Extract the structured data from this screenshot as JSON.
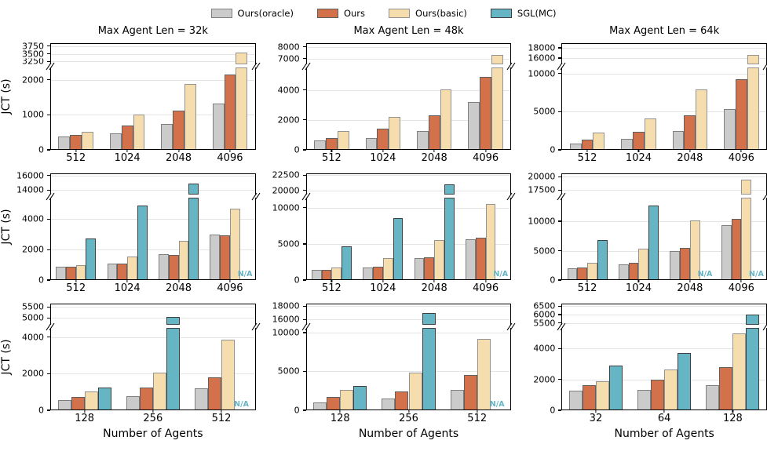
{
  "ylabel": "JCT (s)",
  "xlabel": "Number of Agents",
  "na_label": "N/A",
  "legend": {
    "items": [
      {
        "label": "Ours(oracle)",
        "color": "#cbcbcb",
        "edge": "#7f7f7f"
      },
      {
        "label": "Ours",
        "color": "#d2714a",
        "edge": "#5f5f5f"
      },
      {
        "label": "Ours(basic)",
        "color": "#f6ddad",
        "edge": "#939393"
      },
      {
        "label": "SGL(MC)",
        "color": "#66b5c5",
        "edge": "#3f3f3f"
      }
    ]
  },
  "chart_data": [
    {
      "type": "bar",
      "title": "Max Agent Len = 32k",
      "categories": [
        "512",
        "1024",
        "2048",
        "4096"
      ],
      "series": [
        {
          "name": "Ours(oracle)",
          "values": [
            380,
            470,
            740,
            1310
          ]
        },
        {
          "name": "Ours",
          "values": [
            420,
            690,
            1120,
            2150
          ]
        },
        {
          "name": "Ours(basic)",
          "values": [
            510,
            1000,
            1890,
            3530
          ]
        }
      ],
      "broken_axis": {
        "lower": {
          "ticks": [
            0,
            1000,
            2000
          ],
          "max": 2350
        },
        "upper": {
          "ticks": [
            3250,
            3500,
            3750
          ],
          "min": 3150,
          "max": 3850
        }
      }
    },
    {
      "type": "bar",
      "title": "Max Agent Len = 48k",
      "categories": [
        "512",
        "1024",
        "2048",
        "4096"
      ],
      "series": [
        {
          "name": "Ours(oracle)",
          "values": [
            650,
            800,
            1280,
            3180
          ]
        },
        {
          "name": "Ours",
          "values": [
            800,
            1400,
            2280,
            4850
          ]
        },
        {
          "name": "Ours(basic)",
          "values": [
            1250,
            2200,
            4050,
            7300
          ]
        }
      ],
      "broken_axis": {
        "lower": {
          "ticks": [
            0,
            2000,
            4000
          ],
          "max": 5500
        },
        "upper": {
          "ticks": [
            7000,
            8000
          ],
          "min": 6500,
          "max": 8300
        }
      }
    },
    {
      "type": "bar",
      "title": "Max Agent Len = 64k",
      "categories": [
        "512",
        "1024",
        "2048",
        "4096"
      ],
      "series": [
        {
          "name": "Ours(oracle)",
          "values": [
            850,
            1450,
            2450,
            5300
          ]
        },
        {
          "name": "Ours",
          "values": [
            1300,
            2400,
            4500,
            9300
          ]
        },
        {
          "name": "Ours(basic)",
          "values": [
            2250,
            4100,
            7900,
            16600
          ]
        }
      ],
      "broken_axis": {
        "lower": {
          "ticks": [
            0,
            5000,
            10000
          ],
          "max": 10800
        },
        "upper": {
          "ticks": [
            16000,
            18000
          ],
          "min": 14800,
          "max": 18900
        }
      }
    },
    {
      "type": "bar",
      "title": "",
      "categories": [
        "512",
        "1024",
        "2048",
        "4096"
      ],
      "series": [
        {
          "name": "Ours(oracle)",
          "values": [
            900,
            1100,
            1700,
            3000
          ]
        },
        {
          "name": "Ours",
          "values": [
            880,
            1090,
            1670,
            2920
          ]
        },
        {
          "name": "Ours(basic)",
          "values": [
            1000,
            1520,
            2550,
            4700
          ]
        },
        {
          "name": "SGL(MC)",
          "values": [
            2750,
            4880,
            14900,
            null
          ]
        }
      ],
      "broken_axis": {
        "lower": {
          "ticks": [
            0,
            2000,
            4000
          ],
          "max": 5400
        },
        "upper": {
          "ticks": [
            14000,
            16000
          ],
          "min": 13400,
          "max": 16300
        }
      }
    },
    {
      "type": "bar",
      "title": "",
      "categories": [
        "512",
        "1024",
        "2048",
        "4096"
      ],
      "series": [
        {
          "name": "Ours(oracle)",
          "values": [
            1400,
            1750,
            3000,
            5600
          ]
        },
        {
          "name": "Ours",
          "values": [
            1450,
            1880,
            3150,
            5900
          ]
        },
        {
          "name": "Ours(basic)",
          "values": [
            1750,
            3000,
            5500,
            10500
          ]
        },
        {
          "name": "SGL(MC)",
          "values": [
            4700,
            8600,
            21000,
            null
          ]
        }
      ],
      "broken_axis": {
        "lower": {
          "ticks": [
            0,
            5000,
            10000
          ],
          "max": 11400
        },
        "upper": {
          "ticks": [
            20000,
            22500
          ],
          "min": 19300,
          "max": 22800
        }
      }
    },
    {
      "type": "bar",
      "title": "",
      "categories": [
        "512",
        "1024",
        "2048",
        "4096"
      ],
      "series": [
        {
          "name": "Ours(oracle)",
          "values": [
            2000,
            2700,
            5000,
            9400
          ]
        },
        {
          "name": "Ours",
          "values": [
            2100,
            2950,
            5450,
            10350
          ]
        },
        {
          "name": "Ours(basic)",
          "values": [
            2950,
            5400,
            10100,
            19400
          ]
        },
        {
          "name": "SGL(MC)",
          "values": [
            6800,
            12700,
            null,
            null
          ]
        }
      ],
      "broken_axis": {
        "lower": {
          "ticks": [
            0,
            5000,
            10000
          ],
          "max": 14000
        },
        "upper": {
          "ticks": [
            17500,
            20000
          ],
          "min": 16700,
          "max": 20600
        }
      }
    },
    {
      "type": "bar",
      "title": "",
      "categories": [
        "128",
        "256",
        "512"
      ],
      "series": [
        {
          "name": "Ours(oracle)",
          "values": [
            550,
            780,
            1200
          ]
        },
        {
          "name": "Ours",
          "values": [
            750,
            1250,
            1800
          ]
        },
        {
          "name": "Ours(basic)",
          "values": [
            1050,
            2050,
            3850
          ]
        },
        {
          "name": "SGL(MC)",
          "values": [
            1250,
            5050,
            null
          ]
        }
      ],
      "broken_axis": {
        "lower": {
          "ticks": [
            0,
            2000,
            4000
          ],
          "max": 4500
        },
        "upper": {
          "ticks": [
            5000,
            5500
          ],
          "min": 4700,
          "max": 5650
        }
      }
    },
    {
      "type": "bar",
      "title": "",
      "categories": [
        "128",
        "256",
        "512"
      ],
      "series": [
        {
          "name": "Ours(oracle)",
          "values": [
            1000,
            1550,
            2650
          ]
        },
        {
          "name": "Ours",
          "values": [
            1700,
            2400,
            4550
          ]
        },
        {
          "name": "Ours(basic)",
          "values": [
            2600,
            4800,
            9200
          ]
        },
        {
          "name": "SGL(MC)",
          "values": [
            3100,
            17000,
            null
          ]
        }
      ],
      "broken_axis": {
        "lower": {
          "ticks": [
            0,
            5000,
            10000
          ],
          "max": 10600
        },
        "upper": {
          "ticks": [
            16000,
            18000
          ],
          "min": 15200,
          "max": 18400
        }
      }
    },
    {
      "type": "bar",
      "title": "",
      "categories": [
        "32",
        "64",
        "128"
      ],
      "series": [
        {
          "name": "Ours(oracle)",
          "values": [
            1250,
            1350,
            1650
          ]
        },
        {
          "name": "Ours",
          "values": [
            1650,
            2000,
            2800
          ]
        },
        {
          "name": "Ours(basic)",
          "values": [
            1900,
            2650,
            5000
          ]
        },
        {
          "name": "SGL(MC)",
          "values": [
            2900,
            3700,
            6000
          ]
        }
      ],
      "broken_axis": {
        "lower": {
          "ticks": [
            0,
            2000,
            4000
          ],
          "max": 5350
        },
        "upper": {
          "ticks": [
            5500,
            6000,
            6500
          ],
          "min": 5400,
          "max": 6650
        }
      }
    }
  ]
}
